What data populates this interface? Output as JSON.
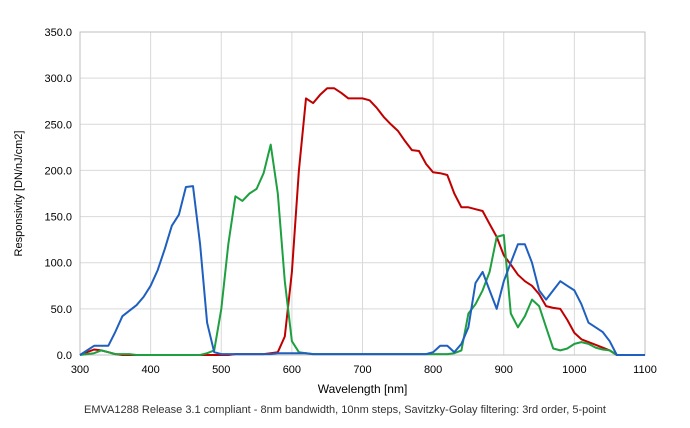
{
  "chart_data": {
    "type": "line",
    "xlabel": "Wavelength [nm]",
    "ylabel": "Responsivity [DN/nJ/cm2]",
    "xlim": [
      300,
      1100
    ],
    "ylim": [
      0,
      350
    ],
    "xticks": [
      300,
      400,
      500,
      600,
      700,
      800,
      900,
      1000,
      1100
    ],
    "yticks": [
      "0.0",
      "50.0",
      "100.0",
      "150.0",
      "200.0",
      "250.0",
      "300.0",
      "350.0"
    ],
    "grid": true,
    "colors": {
      "red": "#c00000",
      "green": "#1ea040",
      "blue": "#1f5fbf"
    },
    "series": [
      {
        "color": "#c00000",
        "x": [
          300,
          310,
          320,
          330,
          340,
          350,
          360,
          370,
          380,
          390,
          400,
          410,
          420,
          430,
          440,
          450,
          460,
          470,
          480,
          490,
          500,
          510,
          520,
          530,
          540,
          550,
          560,
          570,
          580,
          590,
          600,
          610,
          620,
          630,
          640,
          650,
          660,
          670,
          680,
          690,
          700,
          710,
          720,
          730,
          740,
          750,
          760,
          770,
          780,
          790,
          800,
          810,
          820,
          830,
          840,
          850,
          860,
          870,
          880,
          890,
          900,
          910,
          920,
          930,
          940,
          950,
          960,
          970,
          980,
          990,
          1000,
          1010,
          1020,
          1030,
          1040,
          1050,
          1060,
          1070,
          1080,
          1090,
          1100
        ],
        "values": [
          0,
          3,
          6,
          5,
          3,
          1,
          0,
          0,
          0,
          0,
          0,
          0,
          0,
          0,
          0,
          0,
          0,
          0,
          0,
          0,
          0,
          0,
          1,
          1,
          1,
          1,
          1,
          2,
          3,
          20,
          90,
          200,
          278,
          273,
          282,
          289,
          289,
          284,
          278,
          278,
          278,
          276,
          268,
          258,
          250,
          243,
          232,
          222,
          221,
          207,
          198,
          197,
          195,
          175,
          160,
          160,
          158,
          156,
          142,
          128,
          108,
          98,
          87,
          80,
          75,
          66,
          53,
          51,
          50,
          38,
          24,
          17,
          14,
          11,
          8,
          5,
          0,
          0,
          0,
          0,
          0
        ]
      },
      {
        "color": "#1ea040",
        "x": [
          300,
          310,
          320,
          330,
          340,
          350,
          360,
          370,
          380,
          390,
          400,
          410,
          420,
          430,
          440,
          450,
          460,
          470,
          480,
          490,
          500,
          510,
          520,
          530,
          540,
          550,
          560,
          570,
          580,
          590,
          600,
          610,
          620,
          630,
          640,
          650,
          660,
          670,
          680,
          690,
          700,
          710,
          720,
          730,
          740,
          750,
          760,
          770,
          780,
          790,
          800,
          810,
          820,
          830,
          840,
          850,
          860,
          870,
          880,
          890,
          900,
          910,
          920,
          930,
          940,
          950,
          960,
          970,
          980,
          990,
          1000,
          1010,
          1020,
          1030,
          1040,
          1050,
          1060,
          1070,
          1080,
          1090,
          1100
        ],
        "values": [
          0,
          1,
          2,
          5,
          3,
          1,
          1,
          1,
          0,
          0,
          0,
          0,
          0,
          0,
          0,
          0,
          0,
          0,
          2,
          5,
          50,
          120,
          172,
          167,
          175,
          180,
          197,
          228,
          175,
          80,
          15,
          3,
          2,
          1,
          1,
          1,
          1,
          1,
          1,
          1,
          1,
          1,
          1,
          1,
          1,
          1,
          1,
          1,
          1,
          1,
          1,
          1,
          1,
          2,
          5,
          45,
          55,
          70,
          90,
          128,
          130,
          45,
          30,
          42,
          60,
          53,
          30,
          7,
          5,
          7,
          12,
          14,
          12,
          8,
          6,
          5,
          0,
          0,
          0,
          0,
          0
        ]
      },
      {
        "color": "#1f5fbf",
        "x": [
          300,
          310,
          320,
          330,
          340,
          350,
          360,
          370,
          380,
          390,
          400,
          410,
          420,
          430,
          440,
          450,
          460,
          470,
          480,
          490,
          500,
          510,
          520,
          530,
          540,
          550,
          560,
          570,
          580,
          590,
          600,
          610,
          620,
          630,
          640,
          650,
          660,
          670,
          680,
          690,
          700,
          710,
          720,
          730,
          740,
          750,
          760,
          770,
          780,
          790,
          800,
          810,
          820,
          830,
          840,
          850,
          860,
          870,
          880,
          890,
          900,
          910,
          920,
          930,
          940,
          950,
          960,
          970,
          980,
          990,
          1000,
          1010,
          1020,
          1030,
          1040,
          1050,
          1060,
          1070,
          1080,
          1090,
          1100
        ],
        "values": [
          0,
          5,
          10,
          10,
          10,
          25,
          42,
          48,
          54,
          63,
          75,
          92,
          115,
          140,
          152,
          182,
          183,
          120,
          35,
          3,
          1,
          1,
          1,
          1,
          1,
          1,
          1,
          1,
          2,
          2,
          2,
          2,
          2,
          1,
          1,
          1,
          1,
          1,
          1,
          1,
          1,
          1,
          1,
          1,
          1,
          1,
          1,
          1,
          1,
          1,
          3,
          10,
          10,
          3,
          12,
          30,
          78,
          90,
          70,
          50,
          80,
          100,
          120,
          120,
          100,
          70,
          60,
          70,
          80,
          75,
          70,
          55,
          35,
          30,
          25,
          15,
          0,
          0,
          0,
          0,
          0
        ]
      }
    ]
  },
  "caption": "EMVA1288 Release 3.1 compliant - 8nm bandwidth, 10nm steps, Savitzky-Golay filtering: 3rd order, 5-point"
}
